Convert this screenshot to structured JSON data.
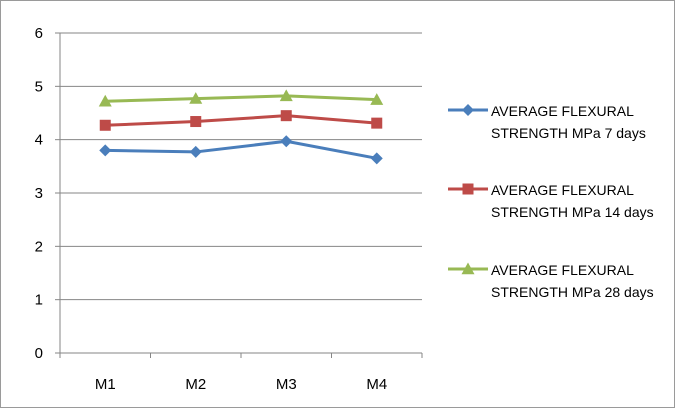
{
  "chart_data": {
    "type": "line",
    "categories": [
      "M1",
      "M2",
      "M3",
      "M4"
    ],
    "y_ticks": [
      "0",
      "1",
      "2",
      "3",
      "4",
      "5",
      "6"
    ],
    "ylim": [
      0,
      6
    ],
    "grid": "horizontal",
    "legend_position": "right",
    "series": [
      {
        "name": "AVERAGE FLEXURAL STRENGTH MPa 7 days",
        "values": [
          3.8,
          3.77,
          3.97,
          3.65
        ],
        "color": "#4a7ebb",
        "marker": "diamond"
      },
      {
        "name": "AVERAGE FLEXURAL STRENGTH MPa 14 days",
        "values": [
          4.27,
          4.34,
          4.45,
          4.31
        ],
        "color": "#be4b48",
        "marker": "square"
      },
      {
        "name": "AVERAGE FLEXURAL STRENGTH MPa 28 days",
        "values": [
          4.72,
          4.77,
          4.82,
          4.75
        ],
        "color": "#98b954",
        "marker": "triangle"
      }
    ]
  }
}
